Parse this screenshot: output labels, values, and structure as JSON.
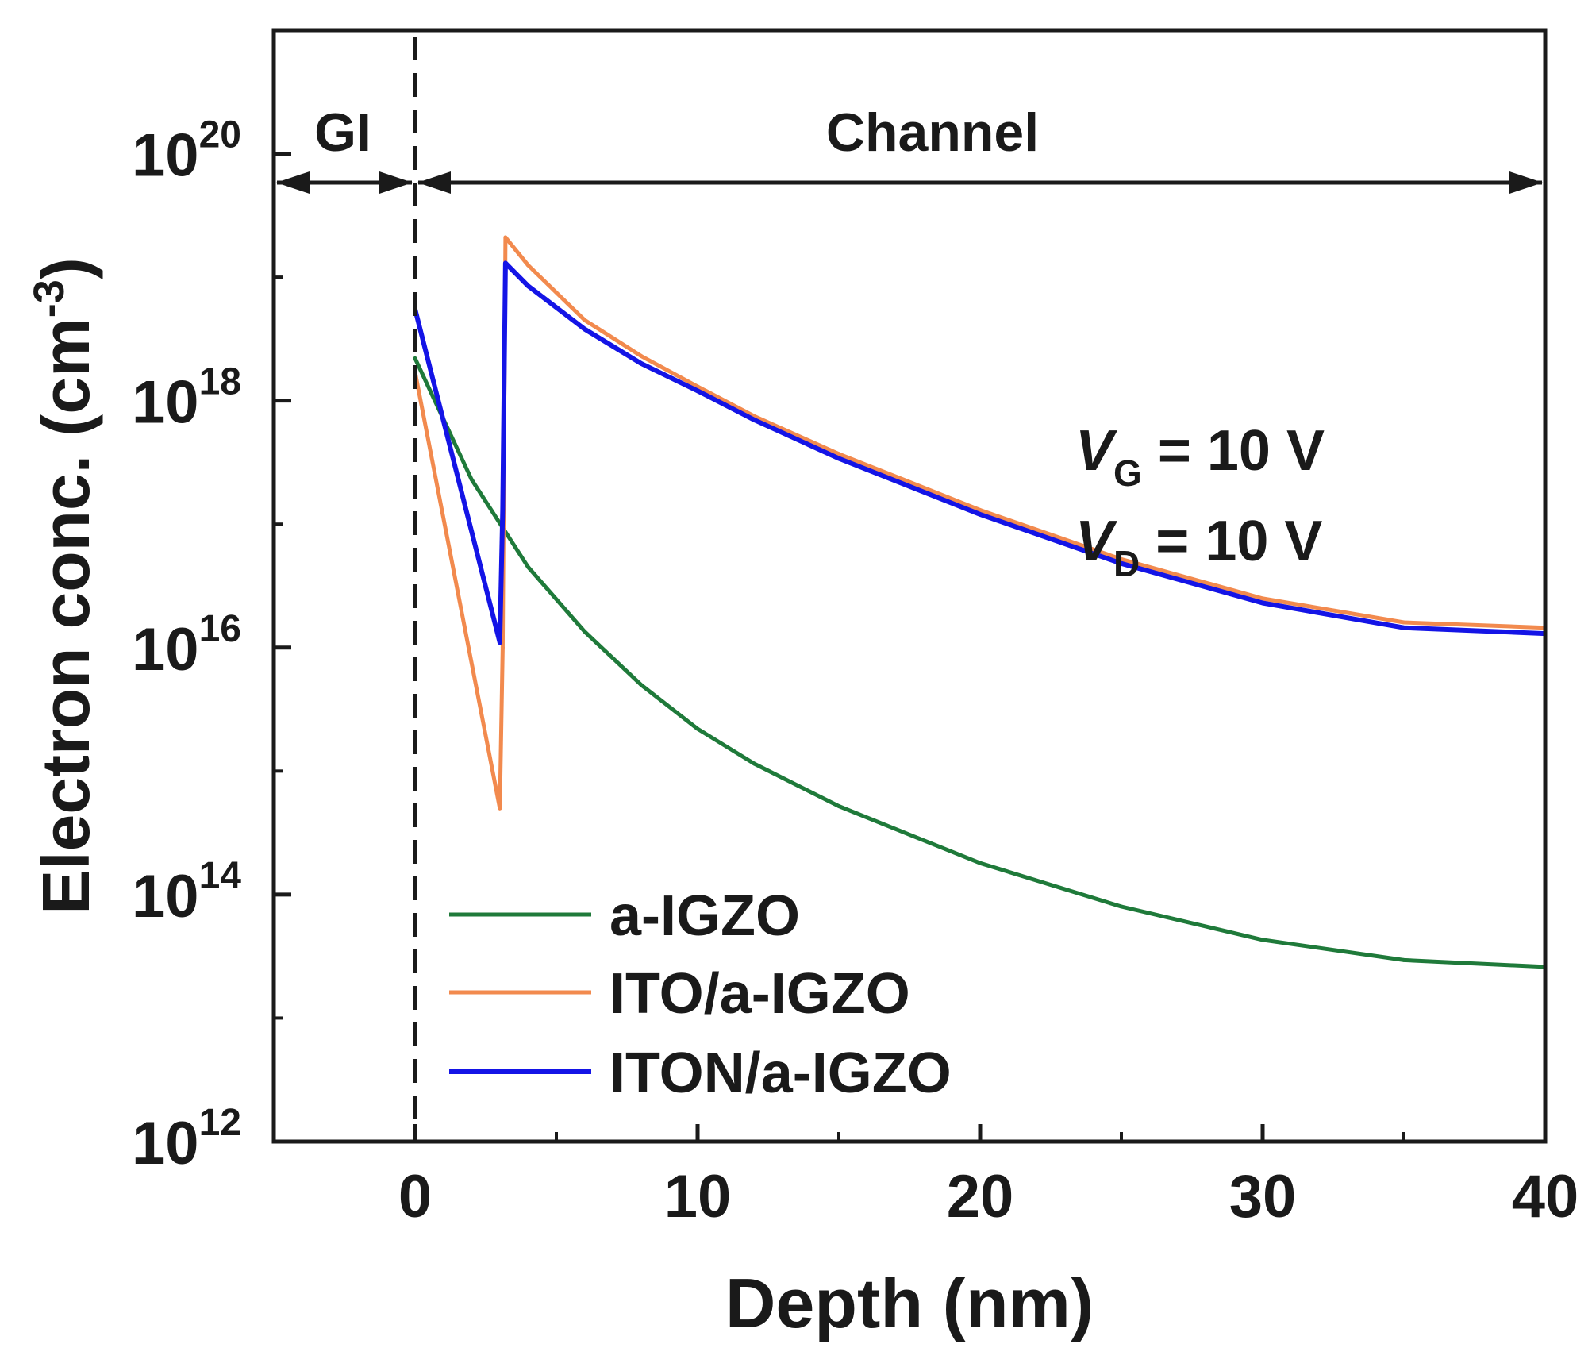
{
  "chart_data": {
    "type": "line",
    "xlabel": "Depth (nm)",
    "ylabel": "Electron conc. (cm",
    "ylabel_superscript": "-3",
    "ylabel_close": ")",
    "xlim": [
      -5,
      40
    ],
    "ylim_log10": [
      12,
      21
    ],
    "y_scale": "log",
    "x_ticks": [
      0,
      10,
      20,
      30,
      40
    ],
    "x_tick_labels": [
      "0",
      "10",
      "20",
      "30",
      "40"
    ],
    "y_ticks_log10": [
      12,
      14,
      16,
      18,
      20
    ],
    "y_tick_base": "10",
    "y_tick_exponents": [
      "12",
      "14",
      "16",
      "18",
      "20"
    ],
    "grid": false,
    "legend_position": "bottom-left",
    "regions": {
      "gi_label": "GI",
      "channel_label": "Channel",
      "boundary_x": 0
    },
    "annotations": {
      "vg_letter": "V",
      "vg_sub": "G",
      "vg_rest": " = 10 V",
      "vd_letter": "V",
      "vd_sub": "D",
      "vd_rest": " = 10 V"
    },
    "series": [
      {
        "name": "a-IGZO",
        "color": "#1f7a3a",
        "x": [
          0,
          2,
          4,
          6,
          8,
          10,
          12,
          15,
          20,
          25,
          30,
          35,
          40
        ],
        "y": [
          2.2e+18,
          2.3e+17,
          4.5e+16,
          1.35e+16,
          5000000000000000.0,
          2200000000000000.0,
          1150000000000000.0,
          520000000000000.0,
          180000000000000.0,
          80000000000000.0,
          43000000000000.0,
          29500000000000.0,
          26000000000000.0
        ]
      },
      {
        "name": "ITO/a-IGZO",
        "color": "#f28a4e",
        "x": [
          0,
          3,
          3.1,
          3.2,
          4,
          6,
          8,
          10,
          12,
          15,
          20,
          25,
          30,
          35,
          40
        ],
        "y": [
          1.7e+18,
          500000000000000.0,
          1e+16,
          2.1e+19,
          1.25e+19,
          4.5e+18,
          2.3e+18,
          1.3e+18,
          7.5e+17,
          3.7e+17,
          1.3e+17,
          5.2e+16,
          2.5e+16,
          1.6e+16,
          1.45e+16
        ]
      },
      {
        "name": "ITON/a-IGZO",
        "color": "#1414e6",
        "x": [
          0,
          3,
          3.1,
          3.2,
          4,
          6,
          8,
          10,
          12,
          15,
          20,
          25,
          30,
          35,
          40
        ],
        "y": [
          5.5e+18,
          1.1e+16,
          1.3e+17,
          1.3e+19,
          8.5e+18,
          3.8e+18,
          2e+18,
          1.2e+18,
          7e+17,
          3.4e+17,
          1.2e+17,
          4.8e+16,
          2.3e+16,
          1.45e+16,
          1.3e+16
        ]
      }
    ]
  }
}
